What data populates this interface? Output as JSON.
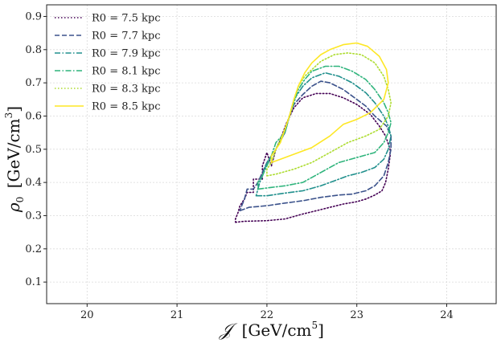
{
  "chart_data": {
    "type": "line",
    "title": "",
    "xlabel_symbol": "𝒥",
    "xlabel_units": "[GeV/cm",
    "xlabel_exp": "5",
    "xlabel_close": "]",
    "ylabel_symbol": "ρ",
    "ylabel_sub": "0",
    "ylabel_units": "[GeV/cm",
    "ylabel_exp": "3",
    "ylabel_close": "]",
    "xlim": [
      19.55,
      24.55
    ],
    "ylim": [
      0.035,
      0.935
    ],
    "xticks": [
      20,
      21,
      22,
      23,
      24
    ],
    "xtick_labels": [
      "20",
      "21",
      "22",
      "23",
      "24"
    ],
    "yticks": [
      0.1,
      0.2,
      0.3,
      0.4,
      0.5,
      0.6,
      0.7,
      0.8,
      0.9
    ],
    "ytick_labels": [
      "0.1",
      "0.2",
      "0.3",
      "0.4",
      "0.5",
      "0.6",
      "0.7",
      "0.8",
      "0.9"
    ],
    "grid": true,
    "legend_position": "top-left",
    "series": [
      {
        "name": "R0 = 7.5 kpc",
        "color": "#440154",
        "style": "dotted",
        "points": [
          [
            21.65,
            0.28
          ],
          [
            21.75,
            0.283
          ],
          [
            22.0,
            0.285
          ],
          [
            22.2,
            0.29
          ],
          [
            22.4,
            0.305
          ],
          [
            22.55,
            0.315
          ],
          [
            22.7,
            0.325
          ],
          [
            22.85,
            0.335
          ],
          [
            23.0,
            0.342
          ],
          [
            23.1,
            0.35
          ],
          [
            23.2,
            0.362
          ],
          [
            23.28,
            0.375
          ],
          [
            23.32,
            0.4
          ],
          [
            23.35,
            0.44
          ],
          [
            23.37,
            0.48
          ],
          [
            23.37,
            0.5
          ],
          [
            23.32,
            0.54
          ],
          [
            23.25,
            0.57
          ],
          [
            23.15,
            0.605
          ],
          [
            23.0,
            0.635
          ],
          [
            22.85,
            0.655
          ],
          [
            22.7,
            0.668
          ],
          [
            22.55,
            0.668
          ],
          [
            22.4,
            0.655
          ],
          [
            22.3,
            0.625
          ],
          [
            22.22,
            0.58
          ],
          [
            22.15,
            0.53
          ],
          [
            22.1,
            0.5
          ],
          [
            22.05,
            0.45
          ],
          [
            22.0,
            0.49
          ],
          [
            21.95,
            0.45
          ],
          [
            21.95,
            0.41
          ],
          [
            21.85,
            0.41
          ],
          [
            21.85,
            0.37
          ],
          [
            21.78,
            0.37
          ],
          [
            21.75,
            0.35
          ],
          [
            21.7,
            0.33
          ],
          [
            21.68,
            0.31
          ],
          [
            21.65,
            0.29
          ],
          [
            21.65,
            0.28
          ]
        ]
      },
      {
        "name": "R0 = 7.7 kpc",
        "color": "#3b528b",
        "style": "dashed",
        "points": [
          [
            21.7,
            0.315
          ],
          [
            21.8,
            0.325
          ],
          [
            22.0,
            0.33
          ],
          [
            22.2,
            0.338
          ],
          [
            22.4,
            0.345
          ],
          [
            22.6,
            0.355
          ],
          [
            22.8,
            0.362
          ],
          [
            22.95,
            0.365
          ],
          [
            23.1,
            0.375
          ],
          [
            23.2,
            0.39
          ],
          [
            23.3,
            0.42
          ],
          [
            23.35,
            0.46
          ],
          [
            23.38,
            0.5
          ],
          [
            23.38,
            0.54
          ],
          [
            23.33,
            0.57
          ],
          [
            23.2,
            0.6
          ],
          [
            23.1,
            0.63
          ],
          [
            23.0,
            0.65
          ],
          [
            22.85,
            0.68
          ],
          [
            22.7,
            0.7
          ],
          [
            22.6,
            0.705
          ],
          [
            22.5,
            0.69
          ],
          [
            22.4,
            0.665
          ],
          [
            22.3,
            0.635
          ],
          [
            22.25,
            0.6
          ],
          [
            22.2,
            0.55
          ],
          [
            22.1,
            0.5
          ],
          [
            22.0,
            0.46
          ],
          [
            21.95,
            0.43
          ],
          [
            21.9,
            0.4
          ],
          [
            21.85,
            0.38
          ],
          [
            21.78,
            0.38
          ],
          [
            21.75,
            0.35
          ],
          [
            21.72,
            0.33
          ],
          [
            21.7,
            0.315
          ]
        ]
      },
      {
        "name": "R0 = 7.9 kpc",
        "color": "#21908d",
        "style": "dashdot",
        "points": [
          [
            21.88,
            0.36
          ],
          [
            22.0,
            0.36
          ],
          [
            22.2,
            0.368
          ],
          [
            22.4,
            0.375
          ],
          [
            22.6,
            0.39
          ],
          [
            22.75,
            0.405
          ],
          [
            22.9,
            0.42
          ],
          [
            23.05,
            0.43
          ],
          [
            23.2,
            0.445
          ],
          [
            23.3,
            0.47
          ],
          [
            23.35,
            0.5
          ],
          [
            23.38,
            0.54
          ],
          [
            23.35,
            0.57
          ],
          [
            23.3,
            0.6
          ],
          [
            23.2,
            0.64
          ],
          [
            23.1,
            0.67
          ],
          [
            22.95,
            0.7
          ],
          [
            22.8,
            0.72
          ],
          [
            22.65,
            0.73
          ],
          [
            22.5,
            0.715
          ],
          [
            22.4,
            0.69
          ],
          [
            22.3,
            0.65
          ],
          [
            22.25,
            0.6
          ],
          [
            22.2,
            0.55
          ],
          [
            22.1,
            0.5
          ],
          [
            22.0,
            0.46
          ],
          [
            21.95,
            0.42
          ],
          [
            21.92,
            0.4
          ],
          [
            21.9,
            0.38
          ],
          [
            21.88,
            0.36
          ]
        ]
      },
      {
        "name": "R0 = 8.1 kpc",
        "color": "#2fb47c",
        "style": "dashdot",
        "points": [
          [
            21.9,
            0.38
          ],
          [
            22.05,
            0.385
          ],
          [
            22.2,
            0.39
          ],
          [
            22.4,
            0.4
          ],
          [
            22.6,
            0.43
          ],
          [
            22.8,
            0.46
          ],
          [
            23.0,
            0.475
          ],
          [
            23.2,
            0.49
          ],
          [
            23.3,
            0.52
          ],
          [
            23.35,
            0.55
          ],
          [
            23.38,
            0.58
          ],
          [
            23.35,
            0.61
          ],
          [
            23.3,
            0.64
          ],
          [
            23.2,
            0.68
          ],
          [
            23.1,
            0.71
          ],
          [
            22.95,
            0.735
          ],
          [
            22.8,
            0.75
          ],
          [
            22.65,
            0.75
          ],
          [
            22.5,
            0.735
          ],
          [
            22.42,
            0.71
          ],
          [
            22.35,
            0.68
          ],
          [
            22.3,
            0.64
          ],
          [
            22.25,
            0.6
          ],
          [
            22.2,
            0.55
          ],
          [
            22.1,
            0.52
          ],
          [
            22.05,
            0.48
          ],
          [
            22.0,
            0.45
          ],
          [
            21.95,
            0.42
          ],
          [
            21.9,
            0.4
          ],
          [
            21.9,
            0.38
          ]
        ]
      },
      {
        "name": "R0 = 8.3 kpc",
        "color": "#addc30",
        "style": "dotted",
        "points": [
          [
            22.0,
            0.42
          ],
          [
            22.1,
            0.425
          ],
          [
            22.3,
            0.44
          ],
          [
            22.5,
            0.46
          ],
          [
            22.7,
            0.49
          ],
          [
            22.9,
            0.52
          ],
          [
            23.1,
            0.54
          ],
          [
            23.25,
            0.56
          ],
          [
            23.35,
            0.6
          ],
          [
            23.38,
            0.64
          ],
          [
            23.35,
            0.68
          ],
          [
            23.3,
            0.72
          ],
          [
            23.2,
            0.76
          ],
          [
            23.05,
            0.785
          ],
          [
            22.9,
            0.79
          ],
          [
            22.75,
            0.785
          ],
          [
            22.6,
            0.765
          ],
          [
            22.5,
            0.74
          ],
          [
            22.42,
            0.72
          ],
          [
            22.35,
            0.69
          ],
          [
            22.3,
            0.65
          ],
          [
            22.25,
            0.6
          ],
          [
            22.2,
            0.56
          ],
          [
            22.1,
            0.5
          ],
          [
            22.05,
            0.46
          ],
          [
            22.0,
            0.44
          ],
          [
            22.0,
            0.42
          ]
        ]
      },
      {
        "name": "R0 = 8.5 kpc",
        "color": "#fde725",
        "style": "solid",
        "points": [
          [
            22.05,
            0.46
          ],
          [
            22.15,
            0.47
          ],
          [
            22.3,
            0.485
          ],
          [
            22.5,
            0.505
          ],
          [
            22.7,
            0.54
          ],
          [
            22.85,
            0.575
          ],
          [
            23.0,
            0.59
          ],
          [
            23.15,
            0.61
          ],
          [
            23.3,
            0.65
          ],
          [
            23.35,
            0.7
          ],
          [
            23.33,
            0.74
          ],
          [
            23.25,
            0.78
          ],
          [
            23.12,
            0.81
          ],
          [
            23.0,
            0.82
          ],
          [
            22.85,
            0.815
          ],
          [
            22.7,
            0.8
          ],
          [
            22.6,
            0.785
          ],
          [
            22.5,
            0.76
          ],
          [
            22.42,
            0.73
          ],
          [
            22.35,
            0.69
          ],
          [
            22.3,
            0.65
          ],
          [
            22.25,
            0.6
          ],
          [
            22.2,
            0.56
          ],
          [
            22.15,
            0.52
          ],
          [
            22.1,
            0.5
          ],
          [
            22.05,
            0.48
          ],
          [
            22.05,
            0.46
          ]
        ]
      }
    ]
  }
}
